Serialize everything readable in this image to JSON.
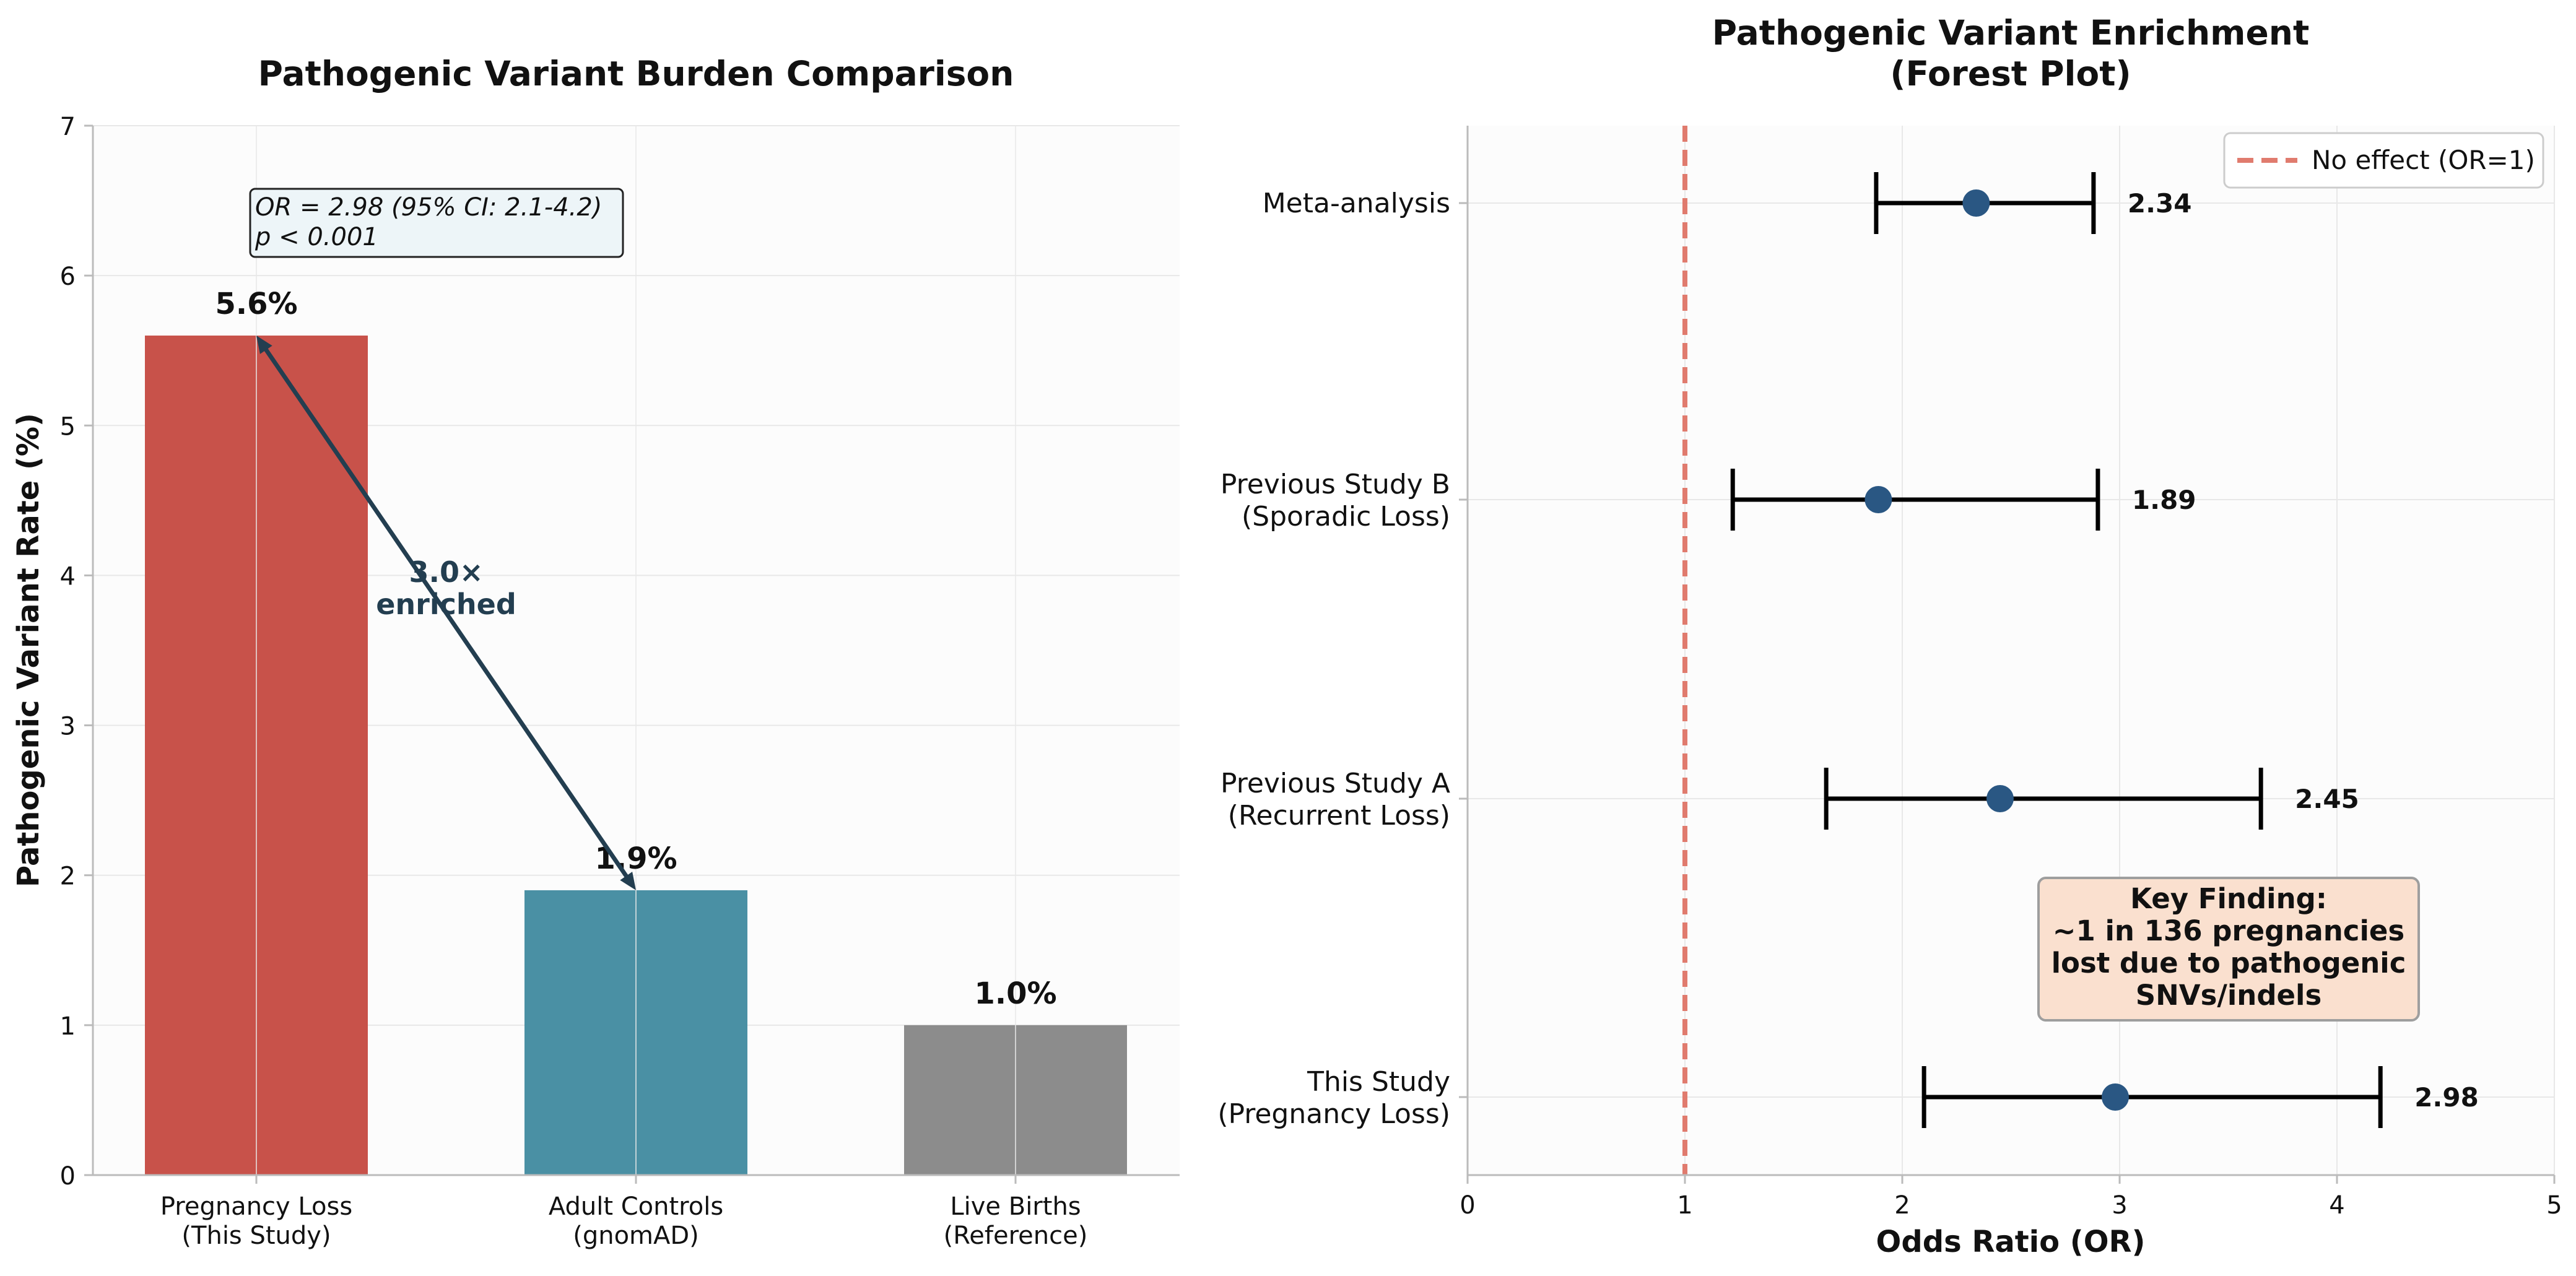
{
  "colors": {
    "plot_bg": "#fcfcfc",
    "grid": "#e8e8e8",
    "spine": "#bbbbbb",
    "text": "#111111",
    "arrow": "#233e50",
    "point": "#2a5783",
    "ref_line": "#e07b6e",
    "stats_box_fill": "#edf5f8",
    "finding_box_fill": "#fae0cf",
    "finding_box_edge": "#9e9e9e"
  },
  "chart_data": [
    {
      "type": "bar",
      "title": "Pathogenic Variant Burden Comparison",
      "xlabel": "",
      "ylabel": "Pathogenic Variant Rate (%)",
      "ylim": [
        0,
        7
      ],
      "yticks": [
        "0",
        "1",
        "2",
        "3",
        "4",
        "5",
        "6",
        "7"
      ],
      "grid": true,
      "categories": [
        [
          "Pregnancy Loss",
          "(This Study)"
        ],
        [
          "Adult Controls",
          "(gnomAD)"
        ],
        [
          "Live Births",
          "(Reference)"
        ]
      ],
      "values": [
        5.6,
        1.9,
        1.0
      ],
      "value_labels": [
        "5.6%",
        "1.9%",
        "1.0%"
      ],
      "bar_colors": [
        "#c8524a",
        "#4a90a4",
        "#8c8c8c"
      ],
      "annotations": {
        "stats_box": [
          "OR = 2.98 (95% CI: 2.1-4.2)",
          "p < 0.001"
        ],
        "enrichment_arrow": {
          "from": {
            "category": 1,
            "value": 1.9
          },
          "to": {
            "category": 0,
            "value": 5.6
          },
          "label": [
            "3.0×",
            "enriched"
          ]
        }
      }
    },
    {
      "type": "forest",
      "title": [
        "Pathogenic Variant Enrichment",
        "(Forest Plot)"
      ],
      "xlabel": "Odds Ratio (OR)",
      "ylabel": "",
      "xlim": [
        0,
        5
      ],
      "xticks": [
        "0",
        "1",
        "2",
        "3",
        "4",
        "5"
      ],
      "grid": true,
      "studies": [
        {
          "label": [
            "This Study",
            "(Pregnancy Loss)"
          ],
          "or": 2.98,
          "ci": [
            2.1,
            4.2
          ],
          "value_label": "2.98"
        },
        {
          "label": [
            "Previous Study A",
            "(Recurrent Loss)"
          ],
          "or": 2.45,
          "ci": [
            1.65,
            3.65
          ],
          "value_label": "2.45"
        },
        {
          "label": [
            "Previous Study B",
            "(Sporadic Loss)"
          ],
          "or": 1.89,
          "ci": [
            1.22,
            2.9
          ],
          "value_label": "1.89"
        },
        {
          "label": [
            "Meta-analysis"
          ],
          "or": 2.34,
          "ci": [
            1.88,
            2.88
          ],
          "value_label": "2.34"
        }
      ],
      "reference_line": {
        "x": 1,
        "label": "No effect (OR=1)"
      },
      "legend": {
        "position": "top-right",
        "entries": [
          "No effect (OR=1)"
        ]
      },
      "finding_box": [
        "Key Finding:",
        "~1 in 136 pregnancies",
        "lost due to pathogenic",
        "SNVs/indels"
      ]
    }
  ]
}
